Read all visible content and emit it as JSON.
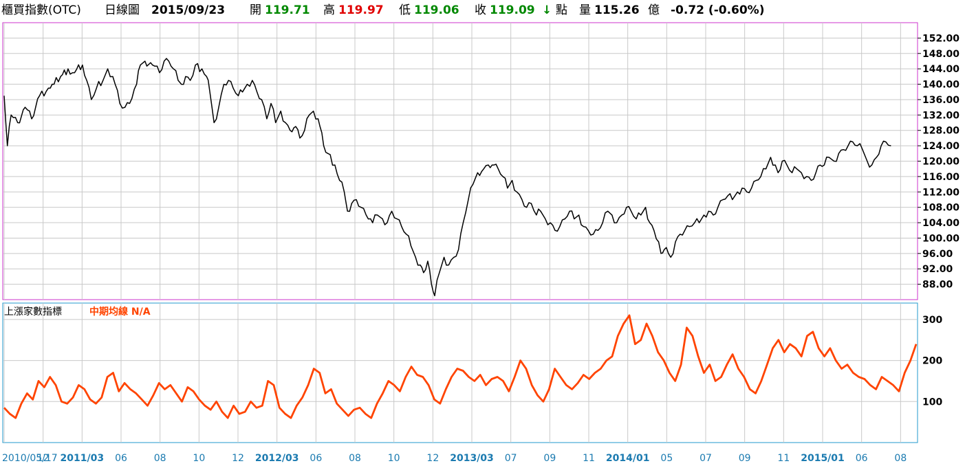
{
  "header": {
    "title": "櫃買指數(OTC)",
    "period": "日線圖",
    "date": "2015/09/23",
    "open_label": "開",
    "open_value": "119.71",
    "high_label": "高",
    "high_value": "119.97",
    "low_label": "低",
    "low_value": "119.06",
    "close_label": "收",
    "close_value": "119.09",
    "close_arrow": "↓",
    "unit_label": "點",
    "volume_label": "量",
    "volume_value": "115.26",
    "volume_unit": "億",
    "change": "-0.72 (-0.60%)"
  },
  "colors": {
    "up": "#e00000",
    "down": "#008800",
    "price_line": "#000000",
    "indicator_line": "#ff4400",
    "price_frame": "#cc33cc",
    "indicator_frame": "#2299cc",
    "axis_text": "#1a7ab0",
    "grid": "#c8c8c8"
  },
  "indicator": {
    "title": "上漲家數指標",
    "ma_label": "中期均線 N/A"
  },
  "chart_data": [
    {
      "type": "line",
      "x_range": [
        "2010/05/17",
        "2015/09/23"
      ],
      "ylim": [
        84,
        156
      ],
      "y_ticks": [
        "88.00",
        "92.00",
        "96.00",
        "100.00",
        "104.00",
        "108.00",
        "112.00",
        "116.00",
        "120.00",
        "124.00",
        "128.00",
        "132.00",
        "136.00",
        "140.00",
        "144.00",
        "148.00",
        "152.00"
      ],
      "series": [
        {
          "points": [
            [
              "2010/05/17",
              137
            ],
            [
              "2010/05/24",
              124
            ],
            [
              "2010/06/01",
              132
            ],
            [
              "2010/06/15",
              130
            ],
            [
              "2010/07/01",
              134
            ],
            [
              "2010/07/15",
              131
            ],
            [
              "2010/08/01",
              137
            ],
            [
              "2010/08/20",
              139
            ],
            [
              "2010/09/01",
              140
            ],
            [
              "2010/09/15",
              142
            ],
            [
              "2010/10/01",
              144
            ],
            [
              "2010/10/15",
              143
            ],
            [
              "2010/11/01",
              145
            ],
            [
              "2010/11/10",
              141
            ],
            [
              "2010/11/20",
              136
            ],
            [
              "2010/12/01",
              139
            ],
            [
              "2010/12/15",
              141
            ],
            [
              "2010/12/25",
              144
            ],
            [
              "2011/01/05",
              142
            ],
            [
              "2011/01/20",
              135
            ],
            [
              "2011/01/31",
              134
            ],
            [
              "2011/02/10",
              135
            ],
            [
              "2011/02/25",
              140
            ],
            [
              "2011/03/05",
              145
            ],
            [
              "2011/03/15",
              146
            ],
            [
              "2011/03/31",
              145
            ],
            [
              "2011/04/15",
              143
            ],
            [
              "2011/04/25",
              146
            ],
            [
              "2011/05/05",
              146
            ],
            [
              "2011/05/15",
              144
            ],
            [
              "2011/05/25",
              141
            ],
            [
              "2011/06/01",
              140
            ],
            [
              "2011/06/10",
              142
            ],
            [
              "2011/06/20",
              141
            ],
            [
              "2011/07/01",
              145
            ],
            [
              "2011/07/15",
              144
            ],
            [
              "2011/07/25",
              142
            ],
            [
              "2011/08/01",
              138
            ],
            [
              "2011/08/10",
              130
            ],
            [
              "2011/08/20",
              134
            ],
            [
              "2011/08/31",
              140
            ],
            [
              "2011/09/10",
              141
            ],
            [
              "2011/09/20",
              139
            ],
            [
              "2011/10/01",
              137
            ],
            [
              "2011/10/10",
              138
            ],
            [
              "2011/10/20",
              140
            ],
            [
              "2011/10/31",
              141
            ],
            [
              "2011/11/10",
              138
            ],
            [
              "2011/11/20",
              136
            ],
            [
              "2011/12/01",
              131
            ],
            [
              "2011/12/10",
              135
            ],
            [
              "2011/12/20",
              130
            ],
            [
              "2011/12/31",
              133
            ],
            [
              "2012/01/10",
              130
            ],
            [
              "2012/01/20",
              128
            ],
            [
              "2012/02/01",
              129
            ],
            [
              "2012/02/10",
              126
            ],
            [
              "2012/02/20",
              128
            ],
            [
              "2012/03/01",
              132
            ],
            [
              "2012/03/10",
              133
            ],
            [
              "2012/03/20",
              131
            ],
            [
              "2012/04/01",
              124
            ],
            [
              "2012/04/10",
              122
            ],
            [
              "2012/04/25",
              119
            ],
            [
              "2012/05/05",
              115
            ],
            [
              "2012/05/15",
              112
            ],
            [
              "2012/05/22",
              107
            ],
            [
              "2012/05/31",
              109
            ],
            [
              "2012/06/10",
              110
            ],
            [
              "2012/06/20",
              108
            ],
            [
              "2012/07/01",
              106
            ],
            [
              "2012/07/15",
              104
            ],
            [
              "2012/07/25",
              106
            ],
            [
              "2012/08/05",
              105
            ],
            [
              "2012/08/15",
              104
            ],
            [
              "2012/08/25",
              107
            ],
            [
              "2012/09/05",
              105
            ],
            [
              "2012/09/15",
              103
            ],
            [
              "2012/09/25",
              101
            ],
            [
              "2012/10/05",
              98
            ],
            [
              "2012/10/15",
              95
            ],
            [
              "2012/10/25",
              93
            ],
            [
              "2012/11/01",
              91
            ],
            [
              "2012/11/10",
              94
            ],
            [
              "2012/11/18",
              88
            ],
            [
              "2012/11/25",
              85
            ],
            [
              "2012/12/05",
              91
            ],
            [
              "2012/12/15",
              95
            ],
            [
              "2012/12/25",
              93
            ],
            [
              "2013/01/05",
              95
            ],
            [
              "2013/01/15",
              97
            ],
            [
              "2013/01/25",
              104
            ],
            [
              "2013/02/05",
              110
            ],
            [
              "2013/02/15",
              114
            ],
            [
              "2013/02/25",
              117
            ],
            [
              "2013/03/10",
              118
            ],
            [
              "2013/03/20",
              119
            ],
            [
              "2013/04/01",
              119
            ],
            [
              "2013/04/10",
              118
            ],
            [
              "2013/04/20",
              116
            ],
            [
              "2013/04/30",
              113
            ],
            [
              "2013/05/10",
              115
            ],
            [
              "2013/05/20",
              112
            ],
            [
              "2013/05/31",
              110
            ],
            [
              "2013/06/10",
              108
            ],
            [
              "2013/06/20",
              109
            ],
            [
              "2013/07/01",
              106
            ],
            [
              "2013/07/10",
              107
            ],
            [
              "2013/07/20",
              105
            ],
            [
              "2013/07/31",
              104
            ],
            [
              "2013/08/10",
              102
            ],
            [
              "2013/08/20",
              103
            ],
            [
              "2013/08/31",
              105
            ],
            [
              "2013/09/10",
              107
            ],
            [
              "2013/09/20",
              105
            ],
            [
              "2013/09/30",
              106
            ],
            [
              "2013/10/10",
              103
            ],
            [
              "2013/10/20",
              102
            ],
            [
              "2013/10/31",
              101
            ],
            [
              "2013/11/10",
              102
            ],
            [
              "2013/11/20",
              104
            ],
            [
              "2013/12/01",
              107
            ],
            [
              "2013/12/10",
              106
            ],
            [
              "2013/12/20",
              104
            ],
            [
              "2013/12/31",
              106
            ],
            [
              "2014/01/10",
              108
            ],
            [
              "2014/01/20",
              107
            ],
            [
              "2014/01/31",
              105
            ],
            [
              "2014/02/10",
              106
            ],
            [
              "2014/02/20",
              108
            ],
            [
              "2014/03/01",
              104
            ],
            [
              "2014/03/10",
              102
            ],
            [
              "2014/03/20",
              99
            ],
            [
              "2014/03/25",
              96
            ],
            [
              "2014/04/01",
              97
            ],
            [
              "2014/04/10",
              96
            ],
            [
              "2014/04/15",
              95
            ],
            [
              "2014/04/25",
              99
            ],
            [
              "2014/05/05",
              101
            ],
            [
              "2014/05/15",
              102
            ],
            [
              "2014/05/25",
              103
            ],
            [
              "2014/06/05",
              104
            ],
            [
              "2014/06/15",
              104
            ],
            [
              "2014/06/25",
              106
            ],
            [
              "2014/07/05",
              107
            ],
            [
              "2014/07/15",
              106
            ],
            [
              "2014/07/25",
              108
            ],
            [
              "2014/08/05",
              110
            ],
            [
              "2014/08/15",
              111
            ],
            [
              "2014/08/25",
              110
            ],
            [
              "2014/09/05",
              112
            ],
            [
              "2014/09/15",
              113
            ],
            [
              "2014/09/25",
              112
            ],
            [
              "2014/10/05",
              113
            ],
            [
              "2014/10/15",
              115
            ],
            [
              "2014/10/25",
              116
            ],
            [
              "2014/11/05",
              118
            ],
            [
              "2014/11/15",
              121
            ],
            [
              "2014/11/25",
              119
            ],
            [
              "2014/12/01",
              117
            ],
            [
              "2014/12/10",
              120
            ],
            [
              "2014/12/20",
              119
            ],
            [
              "2014/12/31",
              117
            ],
            [
              "2015/01/10",
              118
            ],
            [
              "2015/01/20",
              117
            ],
            [
              "2015/01/31",
              116
            ],
            [
              "2015/02/10",
              115
            ],
            [
              "2015/02/20",
              117
            ],
            [
              "2015/03/01",
              119
            ],
            [
              "2015/03/10",
              119
            ],
            [
              "2015/03/20",
              121
            ],
            [
              "2015/03/31",
              120
            ],
            [
              "2015/04/10",
              122
            ],
            [
              "2015/04/20",
              123
            ],
            [
              "2015/04/30",
              124
            ],
            [
              "2015/05/10",
              125
            ],
            [
              "2015/05/20",
              124
            ],
            [
              "2015/05/31",
              123
            ],
            [
              "2015/06/10",
              120
            ],
            [
              "2015/06/20",
              119
            ],
            [
              "2015/06/30",
              121
            ],
            [
              "2015/07/10",
              124
            ],
            [
              "2015/07/20",
              125
            ],
            [
              "2015/07/31",
              124
            ]
          ]
        }
      ]
    },
    {
      "type": "line",
      "ylim": [
        0,
        340
      ],
      "y_ticks": [
        "100",
        "200",
        "300"
      ],
      "x_ticks": [
        "2010/05/17",
        "12",
        "2011/03",
        "06",
        "08",
        "10",
        "12",
        "2012/03",
        "06",
        "08",
        "10",
        "12",
        "2013/03",
        "07",
        "09",
        "11",
        "2014/01",
        "05",
        "07",
        "09",
        "11",
        "2015/01",
        "06",
        "08"
      ],
      "series": [
        {
          "values": [
            85,
            70,
            60,
            95,
            120,
            105,
            150,
            135,
            160,
            140,
            100,
            95,
            110,
            140,
            130,
            105,
            95,
            110,
            160,
            170,
            125,
            145,
            130,
            120,
            105,
            90,
            115,
            145,
            130,
            140,
            120,
            100,
            135,
            125,
            105,
            90,
            80,
            100,
            75,
            60,
            90,
            70,
            75,
            100,
            85,
            90,
            150,
            140,
            85,
            70,
            60,
            90,
            110,
            140,
            180,
            170,
            120,
            130,
            95,
            80,
            65,
            80,
            85,
            70,
            60,
            95,
            120,
            150,
            140,
            125,
            160,
            185,
            165,
            160,
            140,
            105,
            95,
            130,
            160,
            180,
            175,
            160,
            150,
            165,
            140,
            155,
            160,
            150,
            125,
            160,
            200,
            180,
            140,
            115,
            100,
            130,
            180,
            160,
            140,
            130,
            145,
            165,
            155,
            170,
            180,
            200,
            210,
            260,
            290,
            310,
            240,
            250,
            290,
            260,
            220,
            200,
            170,
            150,
            190,
            280,
            260,
            210,
            170,
            190,
            150,
            160,
            190,
            215,
            180,
            160,
            130,
            120,
            150,
            190,
            230,
            250,
            220,
            240,
            230,
            210,
            260,
            270,
            230,
            210,
            230,
            200,
            180,
            190,
            170,
            160,
            155,
            140,
            130,
            160,
            150,
            140,
            125,
            170,
            200,
            240
          ]
        }
      ]
    }
  ]
}
